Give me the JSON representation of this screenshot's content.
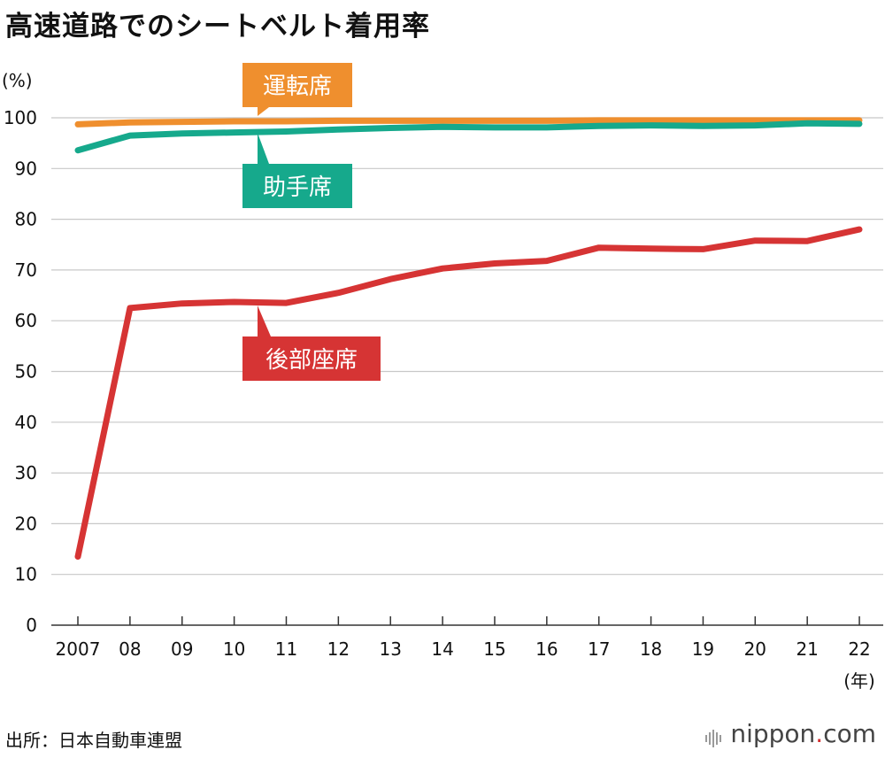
{
  "title": "高速道路でのシートベルト着用率",
  "source": "出所：日本自動車連盟",
  "brand": {
    "name": "nippon",
    "dot": ".",
    "suffix": "com"
  },
  "chart_data": {
    "type": "line",
    "ylabel": "(%)",
    "xunit": "(年)",
    "ylim": [
      0,
      100
    ],
    "yticks": [
      0,
      10,
      20,
      30,
      40,
      50,
      60,
      70,
      80,
      90,
      100
    ],
    "x": [
      "2007",
      "08",
      "09",
      "10",
      "11",
      "12",
      "13",
      "14",
      "15",
      "16",
      "17",
      "18",
      "19",
      "20",
      "21",
      "22"
    ],
    "grid": true,
    "legend": "inline-callouts",
    "series": [
      {
        "name": "運転席",
        "color": "#ef8f2e",
        "values": [
          98.7,
          99.1,
          99.2,
          99.3,
          99.3,
          99.4,
          99.4,
          99.4,
          99.4,
          99.4,
          99.5,
          99.5,
          99.5,
          99.5,
          99.5,
          99.5
        ]
      },
      {
        "name": "助手席",
        "color": "#16a98c",
        "values": [
          93.6,
          96.5,
          96.9,
          97.1,
          97.3,
          97.7,
          98.0,
          98.2,
          98.1,
          98.1,
          98.4,
          98.5,
          98.4,
          98.5,
          98.9,
          98.8
        ]
      },
      {
        "name": "後部座席",
        "color": "#d63434",
        "values": [
          13.5,
          62.5,
          63.4,
          63.7,
          63.5,
          65.5,
          68.2,
          70.3,
          71.3,
          71.8,
          74.4,
          74.2,
          74.1,
          75.8,
          75.7,
          78.0
        ]
      }
    ]
  }
}
